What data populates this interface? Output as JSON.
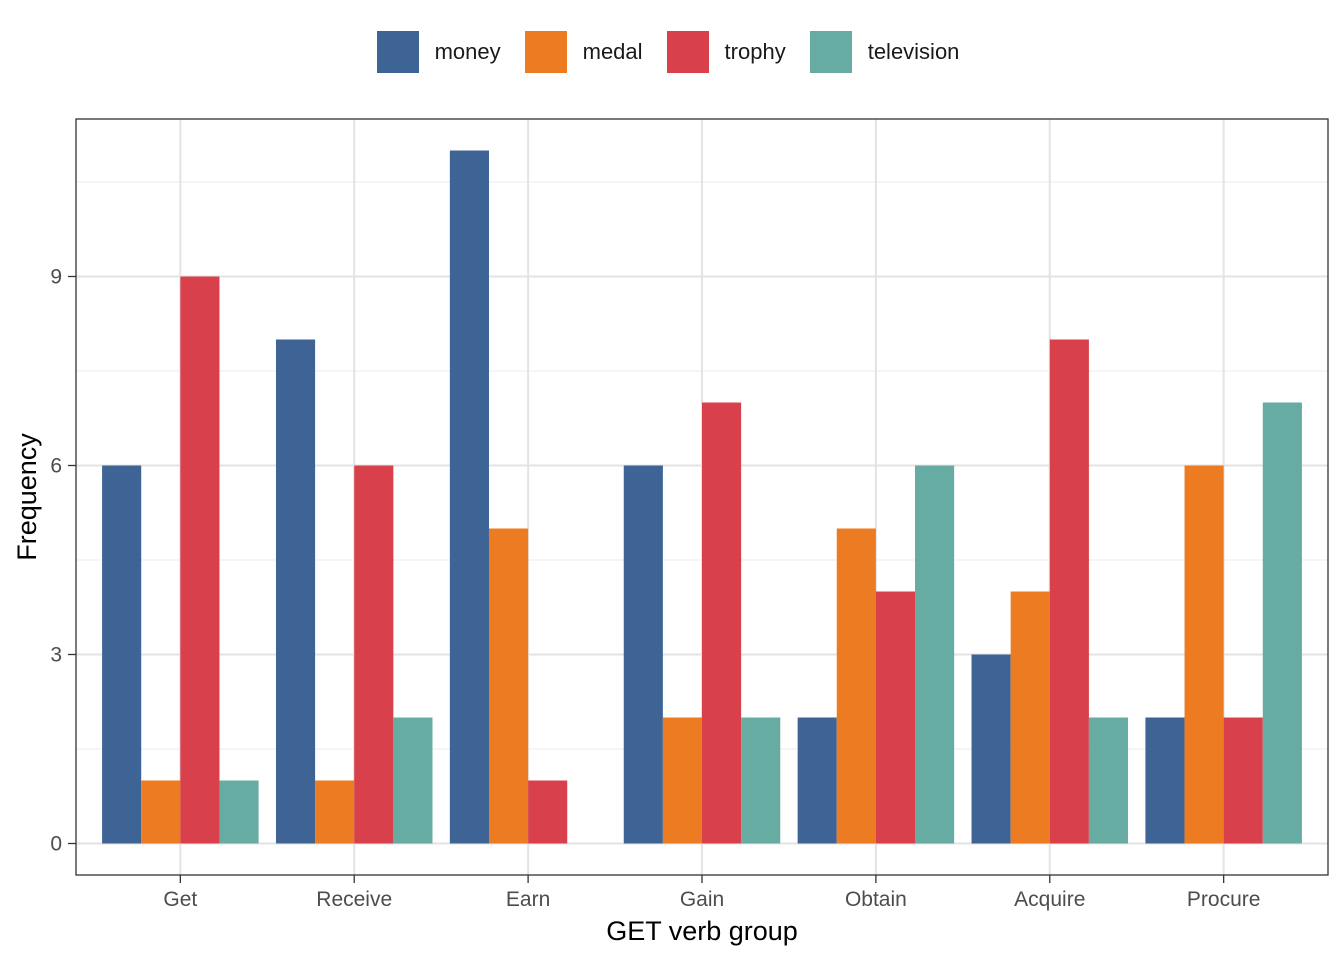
{
  "chart_data": {
    "type": "bar",
    "xlabel": "GET verb group",
    "ylabel": "Frequency",
    "categories": [
      "Get",
      "Receive",
      "Earn",
      "Gain",
      "Obtain",
      "Acquire",
      "Procure"
    ],
    "yticks": [
      0,
      3,
      6,
      9
    ],
    "ylim": [
      -0.5,
      11.5
    ],
    "grid": true,
    "legend_position": "top",
    "series": [
      {
        "name": "money",
        "color": "#3e6496",
        "values": [
          6,
          8,
          11,
          6,
          2,
          3,
          2
        ]
      },
      {
        "name": "medal",
        "color": "#ec7b22",
        "values": [
          1,
          1,
          5,
          2,
          5,
          4,
          6
        ]
      },
      {
        "name": "trophy",
        "color": "#d8404b",
        "values": [
          9,
          6,
          1,
          7,
          4,
          8,
          2
        ]
      },
      {
        "name": "television",
        "color": "#66aca3",
        "values": [
          1,
          2,
          null,
          2,
          6,
          2,
          7
        ]
      }
    ]
  }
}
